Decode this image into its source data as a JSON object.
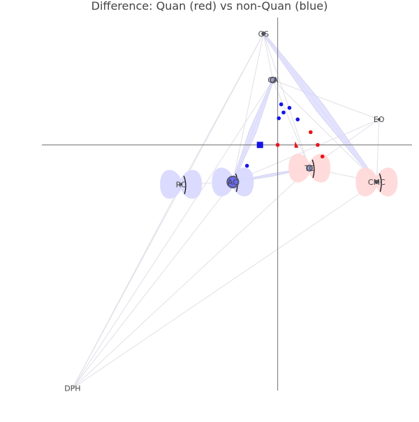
{
  "chart_data": {
    "type": "scatter",
    "title": "Difference: Quan (red) vs non-Quan (blue)",
    "xlabel": "",
    "ylabel": "",
    "grid": false,
    "legend": "none",
    "xlim": [
      -1.0,
      0.57
    ],
    "ylim": [
      -1.06,
      0.55
    ],
    "colors": {
      "quan": "#e8141b",
      "non_quan": "#1414e8",
      "quan_fill": "#ffd9d9",
      "non_quan_fill": "#d9d9ff",
      "edge": "#e0e0e8",
      "axis": "#888888",
      "node": "#555566",
      "node_ring": "#5a5a7a"
    },
    "nodes": [
      {
        "id": "GS",
        "label": "GS",
        "x": -0.06,
        "y": 0.48,
        "size": 3
      },
      {
        "id": "CA",
        "label": "CA",
        "x": -0.02,
        "y": 0.28,
        "size": 4
      },
      {
        "id": "EO",
        "label": "EO",
        "x": 0.43,
        "y": 0.11,
        "size": 2
      },
      {
        "id": "AC",
        "label": "AC",
        "x": -0.19,
        "y": -0.16,
        "size": 8
      },
      {
        "id": "RC",
        "label": "RC",
        "x": -0.41,
        "y": -0.17,
        "size": 2
      },
      {
        "id": "TC",
        "label": "TC",
        "x": 0.135,
        "y": -0.1,
        "size": 4
      },
      {
        "id": "CMC",
        "label": "CMC",
        "x": 0.42,
        "y": -0.16,
        "size": 3
      },
      {
        "id": "DPH",
        "label": "DPH",
        "x": -0.87,
        "y": -1.05,
        "size": 0
      }
    ],
    "edges": [
      [
        "GS",
        "CA"
      ],
      [
        "GS",
        "TC"
      ],
      [
        "GS",
        "CMC"
      ],
      [
        "GS",
        "AC"
      ],
      [
        "GS",
        "RC"
      ],
      [
        "GS",
        "DPH"
      ],
      [
        "CA",
        "EO"
      ],
      [
        "CA",
        "AC"
      ],
      [
        "CA",
        "TC"
      ],
      [
        "CA",
        "CMC"
      ],
      [
        "CA",
        "DPH"
      ],
      [
        "EO",
        "CMC"
      ],
      [
        "EO",
        "TC"
      ],
      [
        "EO",
        "AC"
      ],
      [
        "AC",
        "TC"
      ],
      [
        "AC",
        "DPH"
      ],
      [
        "RC",
        "AC"
      ],
      [
        "RC",
        "DPH"
      ],
      [
        "TC",
        "DPH"
      ],
      [
        "CMC",
        "DPH"
      ],
      [
        "TC",
        "CMC"
      ]
    ],
    "edge_bands": [
      {
        "from": "GS",
        "to": "CMC",
        "group": "non_quan",
        "width": 0.04
      },
      {
        "from": "CA",
        "to": "AC",
        "group": "non_quan",
        "width": 0.03
      },
      {
        "from": "AC",
        "to": "TC",
        "group": "non_quan",
        "width": 0.012
      }
    ],
    "lobes": [
      {
        "node": "RC",
        "group": "non_quan"
      },
      {
        "node": "AC",
        "group": "non_quan"
      },
      {
        "node": "TC",
        "group": "quan"
      },
      {
        "node": "CMC",
        "group": "quan"
      }
    ],
    "series": [
      {
        "name": "Quan",
        "group": "quan",
        "points": [
          {
            "x": 0.0,
            "y": 0.0,
            "marker": "circle"
          },
          {
            "x": 0.08,
            "y": 0.0,
            "marker": "triangle"
          },
          {
            "x": 0.17,
            "y": 0.0,
            "marker": "circle"
          },
          {
            "x": 0.14,
            "y": 0.055,
            "marker": "circle"
          },
          {
            "x": 0.19,
            "y": -0.05,
            "marker": "circle"
          }
        ]
      },
      {
        "name": "non-Quan",
        "group": "non_quan",
        "points": [
          {
            "x": -0.075,
            "y": 0.0,
            "marker": "square"
          },
          {
            "x": 0.015,
            "y": 0.175,
            "marker": "circle"
          },
          {
            "x": 0.05,
            "y": 0.16,
            "marker": "circle"
          },
          {
            "x": 0.025,
            "y": 0.14,
            "marker": "circle"
          },
          {
            "x": 0.005,
            "y": 0.115,
            "marker": "circle"
          },
          {
            "x": 0.085,
            "y": 0.11,
            "marker": "circle"
          },
          {
            "x": -0.13,
            "y": -0.09,
            "marker": "circle"
          }
        ]
      }
    ]
  }
}
